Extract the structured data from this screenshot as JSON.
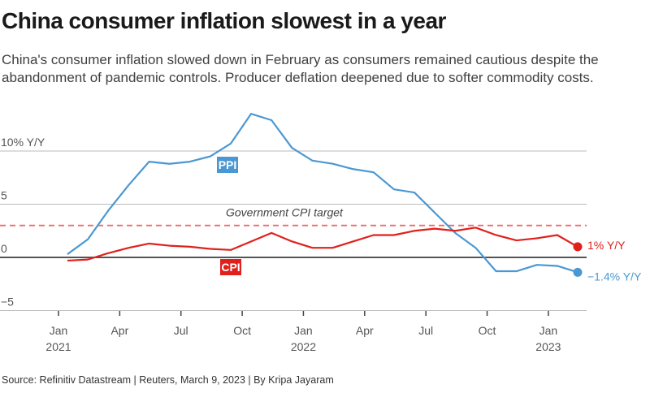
{
  "title": "China consumer inflation slowest in a year",
  "subtitle": "China's consumer inflation slowed down in February as consumers remained cautious despite the abandonment of pandemic controls. Producer deflation deepened due to softer commodity costs.",
  "source": "Source: Refinitiv Datastream | Reuters, March 9, 2023 | By Kripa Jayaram",
  "chart_data": {
    "type": "line",
    "title": "China consumer inflation slowest in a year",
    "ylabel": "% Y/Y",
    "ylim": [
      -5,
      14
    ],
    "grid": true,
    "y_ticks": [
      {
        "value": 10,
        "label": "10% Y/Y"
      },
      {
        "value": 5,
        "label": "5"
      },
      {
        "value": 0,
        "label": "0"
      },
      {
        "value": -5,
        "label": "−5"
      }
    ],
    "x_ticks": [
      {
        "index": 0,
        "label": "Jan",
        "year": "2021"
      },
      {
        "index": 3,
        "label": "Apr",
        "year": ""
      },
      {
        "index": 6,
        "label": "Jul",
        "year": ""
      },
      {
        "index": 9,
        "label": "Oct",
        "year": ""
      },
      {
        "index": 12,
        "label": "Jan",
        "year": "2022"
      },
      {
        "index": 15,
        "label": "Apr",
        "year": ""
      },
      {
        "index": 18,
        "label": "Jul",
        "year": ""
      },
      {
        "index": 21,
        "label": "Oct",
        "year": ""
      },
      {
        "index": 24,
        "label": "Jan",
        "year": "2023"
      }
    ],
    "x": [
      "2021-01",
      "2021-02",
      "2021-03",
      "2021-04",
      "2021-05",
      "2021-06",
      "2021-07",
      "2021-08",
      "2021-09",
      "2021-10",
      "2021-11",
      "2021-12",
      "2022-01",
      "2022-02",
      "2022-03",
      "2022-04",
      "2022-05",
      "2022-06",
      "2022-07",
      "2022-08",
      "2022-09",
      "2022-10",
      "2022-11",
      "2022-12",
      "2023-01",
      "2023-02"
    ],
    "series": [
      {
        "name": "PPI",
        "color": "#4a98d3",
        "end_label": "−1.4% Y/Y",
        "values": [
          0.3,
          1.7,
          4.4,
          6.8,
          9.0,
          8.8,
          9.0,
          9.5,
          10.7,
          13.5,
          12.9,
          10.3,
          9.1,
          8.8,
          8.3,
          8.0,
          6.4,
          6.1,
          4.2,
          2.3,
          0.9,
          -1.3,
          -1.3,
          -0.7,
          -0.8,
          -1.4
        ]
      },
      {
        "name": "CPI",
        "color": "#e0201b",
        "end_label": "1% Y/Y",
        "values": [
          -0.3,
          -0.2,
          0.4,
          0.9,
          1.3,
          1.1,
          1.0,
          0.8,
          0.7,
          1.5,
          2.3,
          1.5,
          0.9,
          0.9,
          1.5,
          2.1,
          2.1,
          2.5,
          2.7,
          2.5,
          2.8,
          2.1,
          1.6,
          1.8,
          2.1,
          1.0
        ]
      }
    ],
    "annotations": [
      {
        "label": "Government CPI target",
        "value": 3,
        "color": "#f06a6a",
        "style": "dashed"
      }
    ]
  }
}
